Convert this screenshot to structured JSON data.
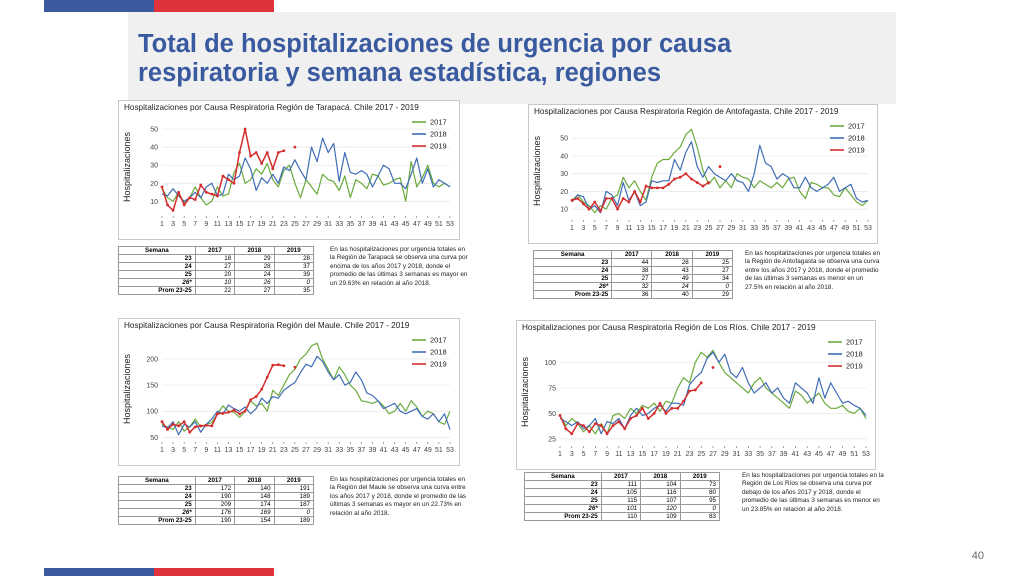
{
  "title": "Total de hospitalizaciones de urgencia por causa respiratoria y semana estadística, regiones",
  "page_number": "40",
  "colors": {
    "blue_bar": "#3a5aa0",
    "red_bar": "#e0323a",
    "s2017": "#6aaa3c",
    "s2018": "#3f6db5",
    "s2019": "#d42d2d"
  },
  "table_headers": [
    "Semana",
    "2017",
    "2018",
    "2019"
  ],
  "x_ticks": [
    "1",
    "3",
    "5",
    "7",
    "9",
    "11",
    "13",
    "15",
    "17",
    "19",
    "21",
    "23",
    "25",
    "27",
    "29",
    "31",
    "33",
    "35",
    "37",
    "39",
    "41",
    "43",
    "45",
    "47",
    "49",
    "51",
    "53"
  ],
  "legend": [
    "2017",
    "2018",
    "2019"
  ],
  "ylabel": "Hospitalizaciones",
  "chart_data": [
    {
      "type": "line",
      "title": "Hospitalizaciones por Causa Respiratoria Región de Tarapacá. Chile 2017 - 2019",
      "ylabel": "Hospitalizaciones",
      "ylim": [
        3,
        55
      ],
      "yticks": [
        10,
        20,
        30,
        40,
        50
      ],
      "series": [
        {
          "name": "2017",
          "values": [
            17,
            12,
            10,
            15,
            9,
            12,
            18,
            12,
            8,
            10,
            18,
            13,
            14,
            26,
            31,
            20,
            22,
            28,
            25,
            31,
            22,
            18,
            27,
            30,
            20,
            12,
            22,
            18,
            14,
            25,
            22,
            21,
            16,
            24,
            12,
            22,
            20,
            17,
            25,
            24,
            19,
            20,
            22,
            23,
            10,
            32,
            18,
            23,
            30,
            20,
            18,
            20,
            18
          ]
        },
        {
          "name": "2018",
          "values": [
            14,
            13,
            17,
            13,
            10,
            12,
            15,
            12,
            18,
            20,
            13,
            14,
            25,
            22,
            24,
            34,
            28,
            16,
            23,
            20,
            25,
            20,
            29,
            27,
            33,
            27,
            22,
            40,
            32,
            45,
            37,
            42,
            21,
            37,
            26,
            25,
            27,
            25,
            18,
            24,
            30,
            28,
            20,
            20,
            17,
            25,
            34,
            20,
            28,
            18,
            22,
            20,
            18
          ]
        },
        {
          "name": "2019",
          "values": [
            18,
            8,
            5,
            15,
            8,
            12,
            11,
            19,
            15,
            14,
            13,
            24,
            22,
            20,
            37,
            50,
            35,
            37,
            31,
            37,
            28,
            37,
            38,
            null,
            40
          ]
        }
      ],
      "table": [
        {
          "label": "23",
          "v": [
            "18",
            "29",
            "28"
          ]
        },
        {
          "label": "24",
          "v": [
            "27",
            "28",
            "37"
          ]
        },
        {
          "label": "25",
          "v": [
            "20",
            "24",
            "39"
          ]
        },
        {
          "label": "26*",
          "v": [
            "10",
            "26",
            "0"
          ],
          "italic": true
        },
        {
          "label": "Prom 23-25",
          "v": [
            "22",
            "27",
            "35"
          ]
        }
      ],
      "note": "En las hospitalizaciones por urgencia totales en la Región de Tarapacá se observa una curva por encima de los años 2017 y 2018, donde el promedio de las últimas 3 semanas es mayor en un 29.63% en relación al año 2018."
    },
    {
      "type": "line",
      "title": "Hospitalizaciones por Causa Respiratoria Región de Antofagasta. Chile 2017 - 2019",
      "ylabel": "Hospitalizaciones",
      "ylim": [
        5,
        58
      ],
      "yticks": [
        10,
        20,
        30,
        40,
        50
      ],
      "series": [
        {
          "name": "2017",
          "values": [
            15,
            18,
            14,
            12,
            8,
            12,
            10,
            16,
            18,
            28,
            22,
            26,
            20,
            15,
            28,
            36,
            38,
            38,
            42,
            45,
            52,
            55,
            45,
            32,
            24,
            28,
            22,
            26,
            22,
            30,
            28,
            27,
            22,
            26,
            24,
            22,
            25,
            22,
            27,
            28,
            20,
            16,
            25,
            24,
            22,
            22,
            18,
            17,
            22,
            18,
            14,
            12,
            15
          ]
        },
        {
          "name": "2018",
          "values": [
            14,
            18,
            17,
            10,
            12,
            8,
            20,
            18,
            12,
            25,
            15,
            20,
            12,
            14,
            26,
            25,
            26,
            26,
            38,
            32,
            42,
            48,
            34,
            28,
            34,
            30,
            28,
            26,
            30,
            26,
            25,
            20,
            30,
            46,
            36,
            34,
            27,
            30,
            28,
            22,
            22,
            28,
            22,
            20,
            22,
            24,
            28,
            20,
            22,
            24,
            16,
            14,
            15
          ]
        },
        {
          "name": "2019",
          "values": [
            15,
            16,
            13,
            10,
            14,
            9,
            16,
            16,
            10,
            16,
            14,
            20,
            14,
            23,
            22,
            22,
            22,
            24,
            27,
            28,
            30,
            27,
            25,
            23,
            25,
            null,
            34
          ]
        }
      ],
      "table": [
        {
          "label": "23",
          "v": [
            "44",
            "28",
            "25"
          ]
        },
        {
          "label": "24",
          "v": [
            "38",
            "43",
            "27"
          ]
        },
        {
          "label": "25",
          "v": [
            "27",
            "49",
            "34"
          ]
        },
        {
          "label": "26*",
          "v": [
            "32",
            "24",
            "0"
          ],
          "italic": true
        },
        {
          "label": "Prom 23-25",
          "v": [
            "36",
            "40",
            "29"
          ]
        }
      ],
      "note": "En las hospitalizaciones por urgencia totales en la Región de Antofagasta se observa una curva entre los años 2017 y 2018, donde el promedio de las últimas 3 semanas es menor en un 27.5% en relación al año 2018."
    },
    {
      "type": "line",
      "title": "Hospitalizaciones por Causa Respiratoria Región del Maule. Chile 2017 - 2019",
      "ylabel": "Hospitalizaciones",
      "ylim": [
        45,
        240
      ],
      "yticks": [
        50,
        100,
        150,
        200
      ],
      "series": [
        {
          "name": "2017",
          "values": [
            75,
            70,
            65,
            80,
            62,
            70,
            85,
            70,
            75,
            78,
            95,
            110,
            100,
            98,
            88,
            100,
            120,
            110,
            115,
            100,
            140,
            130,
            150,
            170,
            180,
            200,
            209,
            225,
            230,
            200,
            180,
            160,
            185,
            170,
            150,
            140,
            120,
            118,
            115,
            120,
            110,
            95,
            100,
            115,
            100,
            120,
            108,
            90,
            100,
            95,
            80,
            75,
            100
          ]
        },
        {
          "name": "2018",
          "values": [
            72,
            68,
            80,
            55,
            75,
            70,
            80,
            60,
            75,
            85,
            100,
            95,
            112,
            105,
            100,
            108,
            95,
            105,
            125,
            115,
            128,
            125,
            140,
            148,
            155,
            174,
            190,
            185,
            205,
            195,
            175,
            160,
            170,
            150,
            155,
            175,
            160,
            135,
            130,
            120,
            105,
            110,
            115,
            100,
            95,
            100,
            105,
            90,
            85,
            95,
            80,
            95,
            65
          ]
        },
        {
          "name": "2019",
          "values": [
            80,
            65,
            75,
            72,
            80,
            60,
            70,
            72,
            73,
            72,
            95,
            96,
            98,
            102,
            95,
            100,
            122,
            128,
            142,
            165,
            188,
            189,
            187,
            null,
            184
          ]
        }
      ],
      "table": [
        {
          "label": "23",
          "v": [
            "172",
            "140",
            "191"
          ]
        },
        {
          "label": "24",
          "v": [
            "190",
            "148",
            "189"
          ]
        },
        {
          "label": "25",
          "v": [
            "209",
            "174",
            "187"
          ]
        },
        {
          "label": "26*",
          "v": [
            "176",
            "169",
            "0"
          ],
          "italic": true
        },
        {
          "label": "Prom 23-25",
          "v": [
            "190",
            "154",
            "189"
          ]
        }
      ],
      "note": "En las hospitalizaciones por urgencia totales en la Región del Maule se observa una curva entre los años 2017 y 2018, donde el promedio de las últimas 3 semanas es mayor en un 22.73% en relación al año 2018."
    },
    {
      "type": "line",
      "title": "Hospitalizaciones por Causa Respiratoria Región de Los Ríos. Chile 2017 - 2019",
      "ylabel": "Hospitalizaciones",
      "ylim": [
        20,
        122
      ],
      "yticks": [
        25,
        50,
        75,
        100
      ],
      "series": [
        {
          "name": "2017",
          "values": [
            48,
            38,
            45,
            40,
            32,
            38,
            30,
            40,
            30,
            48,
            50,
            45,
            55,
            50,
            58,
            55,
            60,
            52,
            62,
            60,
            75,
            85,
            80,
            100,
            110,
            105,
            112,
            100,
            90,
            85,
            80,
            75,
            70,
            80,
            85,
            75,
            70,
            65,
            60,
            55,
            72,
            68,
            60,
            65,
            70,
            60,
            55,
            55,
            58,
            52,
            50,
            55,
            45
          ]
        },
        {
          "name": "2018",
          "values": [
            45,
            42,
            38,
            42,
            35,
            38,
            45,
            30,
            42,
            40,
            45,
            35,
            48,
            55,
            48,
            50,
            55,
            58,
            52,
            60,
            60,
            58,
            78,
            85,
            90,
            104,
            110,
            100,
            108,
            90,
            85,
            95,
            80,
            70,
            75,
            80,
            70,
            75,
            65,
            60,
            80,
            75,
            70,
            60,
            85,
            65,
            80,
            70,
            60,
            62,
            58,
            55,
            48
          ]
        },
        {
          "name": "2019",
          "values": [
            48,
            35,
            30,
            40,
            38,
            32,
            40,
            38,
            30,
            38,
            42,
            35,
            45,
            48,
            55,
            45,
            50,
            60,
            50,
            55,
            55,
            62,
            72,
            73,
            80,
            null,
            95
          ]
        }
      ],
      "table": [
        {
          "label": "23",
          "v": [
            "111",
            "104",
            "73"
          ]
        },
        {
          "label": "24",
          "v": [
            "105",
            "116",
            "80"
          ]
        },
        {
          "label": "25",
          "v": [
            "115",
            "107",
            "95"
          ]
        },
        {
          "label": "26*",
          "v": [
            "101",
            "120",
            "0"
          ],
          "italic": true
        },
        {
          "label": "Prom 23-25",
          "v": [
            "110",
            "109",
            "83"
          ]
        }
      ],
      "note": "En las hospitalizaciones por urgencia totales en la Región de Los Ríos se observa una curva por debajo de los años 2017 y 2018, donde el promedio de las últimas 3 semanas es menor en un 23.85% en relación al año 2018."
    }
  ]
}
